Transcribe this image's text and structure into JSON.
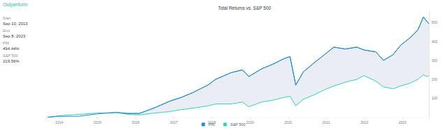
{
  "sidebar": {
    "heading": "Outperform",
    "items": [
      {
        "label": "Start",
        "value": "Sep 10, 2013"
      },
      {
        "label": "End",
        "value": "Sep 8, 2023"
      },
      {
        "label": "PRI",
        "value": "494.44%"
      },
      {
        "label": "S&P 500",
        "value": "219.56%"
      }
    ]
  },
  "chart_data": {
    "type": "line",
    "title": "Total Returns vs. S&P 500",
    "x": [
      2013.69,
      2014.0,
      2014.5,
      2015.0,
      2015.5,
      2015.8,
      2016.1,
      2016.5,
      2016.9,
      2017.2,
      2017.5,
      2017.9,
      2018.1,
      2018.5,
      2018.8,
      2018.97,
      2019.3,
      2019.6,
      2019.9,
      2020.05,
      2020.2,
      2020.4,
      2020.7,
      2020.95,
      2021.2,
      2021.5,
      2021.8,
      2021.99,
      2022.3,
      2022.5,
      2022.75,
      2022.95,
      2023.2,
      2023.4,
      2023.55,
      2023.62,
      2023.69
    ],
    "series": [
      {
        "name": "PRI",
        "color": "#1f8ad6",
        "values": [
          0,
          5,
          5,
          18,
          25,
          20,
          20,
          50,
          85,
          105,
          130,
          170,
          200,
          235,
          250,
          215,
          255,
          280,
          310,
          320,
          170,
          240,
          290,
          330,
          370,
          360,
          370,
          355,
          345,
          300,
          330,
          380,
          420,
          460,
          530,
          510,
          494.44
        ]
      },
      {
        "name": "S&P 500",
        "color": "#2fd3b5",
        "values": [
          0,
          8,
          15,
          22,
          25,
          15,
          12,
          22,
          30,
          40,
          48,
          60,
          70,
          70,
          80,
          55,
          80,
          90,
          105,
          110,
          60,
          95,
          120,
          145,
          165,
          185,
          200,
          220,
          190,
          160,
          150,
          165,
          180,
          200,
          225,
          215,
          219.56
        ]
      }
    ],
    "xlim": [
      2013.69,
      2023.69
    ],
    "xticks": [
      2014,
      2015,
      2016,
      2017,
      2018,
      2019,
      2020,
      2021,
      2022,
      2023
    ],
    "ylim": [
      -5,
      560
    ],
    "yticks": [
      100,
      200,
      300,
      400,
      500
    ],
    "grid": false,
    "legend": "bottom"
  }
}
